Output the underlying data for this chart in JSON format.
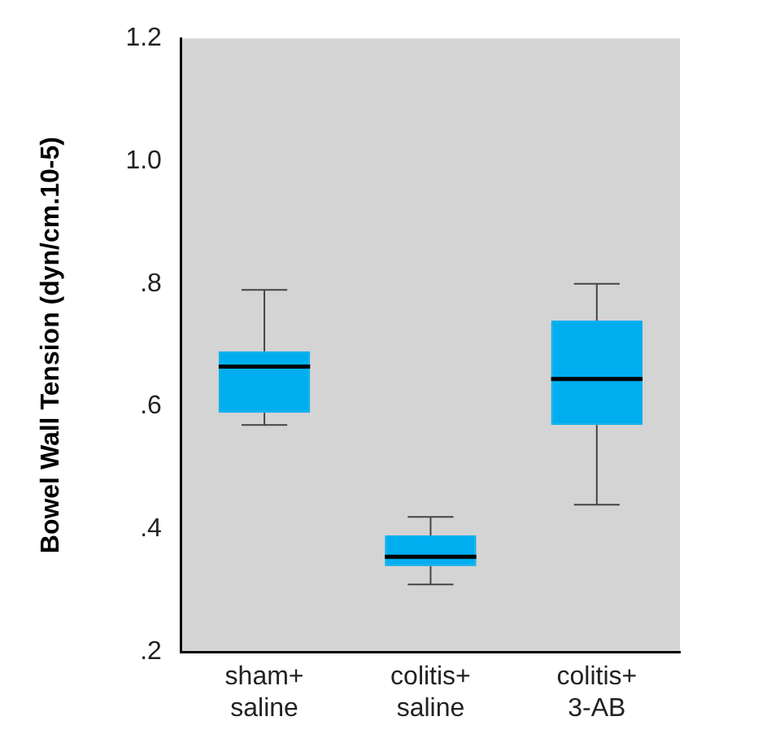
{
  "chart_data": {
    "type": "box",
    "ylabel": "Bowel Wall Tension (dyn/cm.10-5)",
    "categories": [
      "sham+\nsaline",
      "colitis+\nsaline",
      "colitis+\n3-AB"
    ],
    "color": "#00aeef",
    "boxes": [
      {
        "low": 0.57,
        "q1": 0.59,
        "median": 0.665,
        "q3": 0.69,
        "high": 0.79
      },
      {
        "low": 0.31,
        "q1": 0.34,
        "median": 0.355,
        "q3": 0.39,
        "high": 0.42
      },
      {
        "low": 0.44,
        "q1": 0.57,
        "median": 0.645,
        "q3": 0.74,
        "high": 0.8
      }
    ],
    "ylim": [
      0.2,
      1.2
    ],
    "yticks": [
      {
        "value": 0.2,
        "label": ".2"
      },
      {
        "value": 0.4,
        "label": ".4"
      },
      {
        "value": 0.6,
        "label": ".6"
      },
      {
        "value": 0.8,
        "label": ".8"
      },
      {
        "value": 1.0,
        "label": "1.0"
      },
      {
        "value": 1.2,
        "label": "1.2"
      }
    ],
    "grid": false,
    "legend": false
  }
}
